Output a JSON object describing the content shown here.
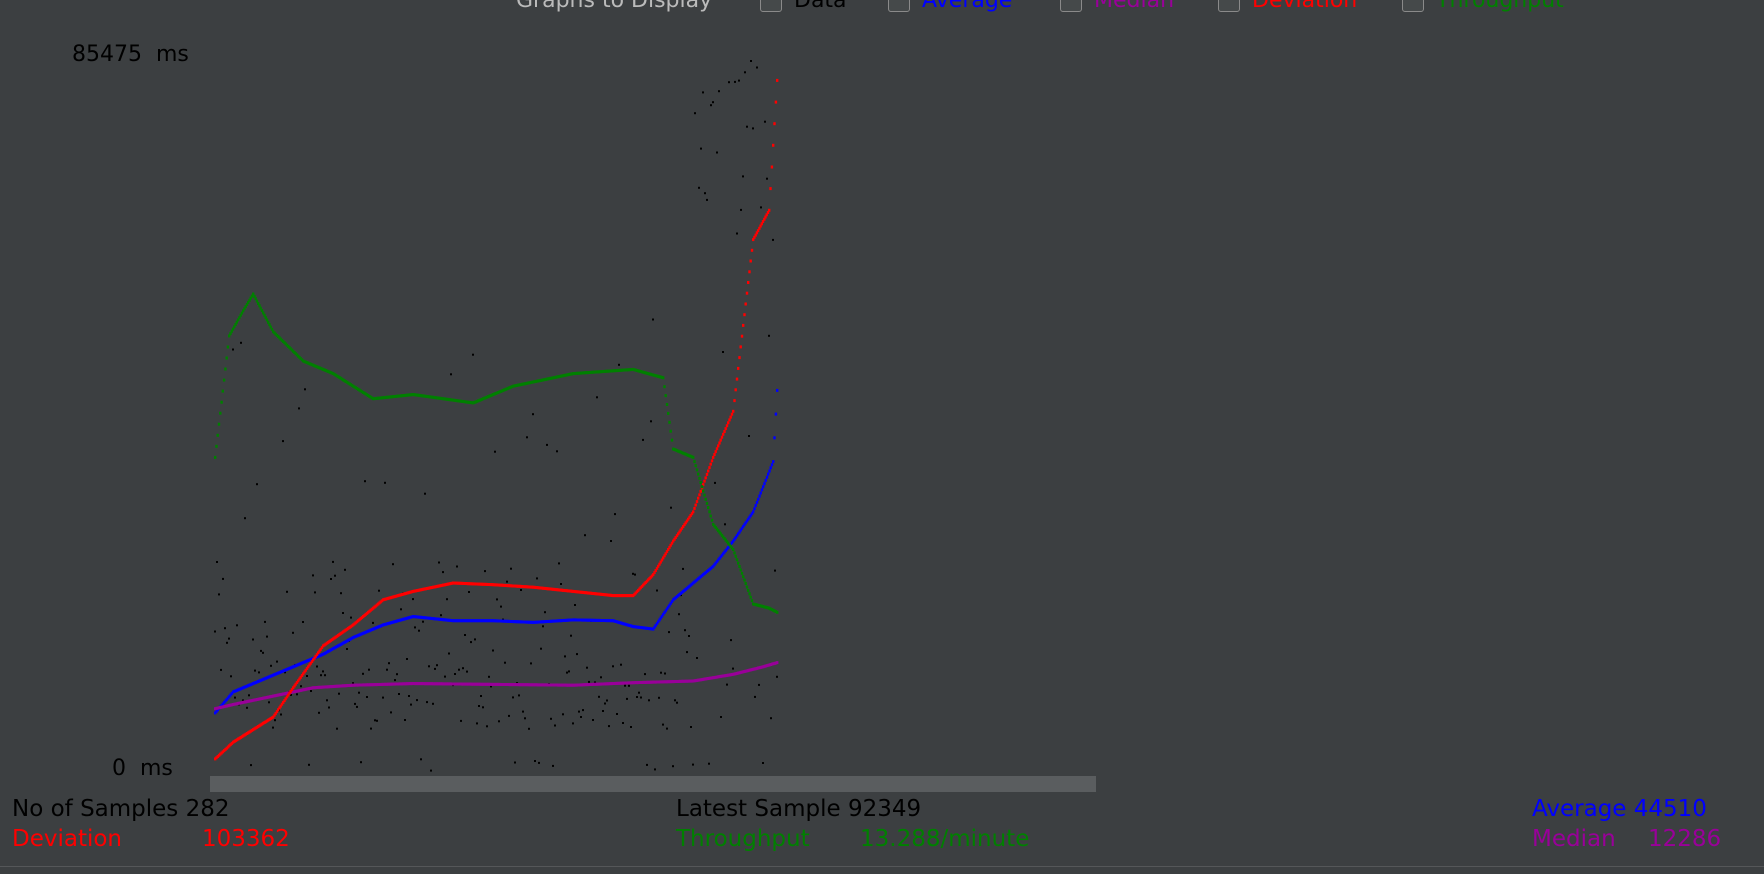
{
  "toolbar": {
    "title": "Graphs to Display",
    "items": [
      {
        "label": "Data",
        "color": "#000000"
      },
      {
        "label": "Average",
        "color": "#0000ff"
      },
      {
        "label": "Median",
        "color": "#990099"
      },
      {
        "label": "Deviation",
        "color": "#ff0000"
      },
      {
        "label": "Throughput",
        "color": "#008000"
      }
    ]
  },
  "axis": {
    "max_label": "85475",
    "min_label": "0",
    "unit": "ms"
  },
  "stats": {
    "samples_label": "No of Samples",
    "samples_value": "282",
    "latest_label": "Latest Sample",
    "latest_value": "92349",
    "average_label": "Average",
    "average_value": "44510",
    "deviation_label": "Deviation",
    "deviation_value": "103362",
    "throughput_label": "Throughput",
    "throughput_value": "13.288/minute",
    "median_label": "Median",
    "median_value": "12286"
  },
  "colors": {
    "background": "#3c3f41",
    "data": "#000000",
    "average": "#0000ff",
    "median": "#990099",
    "deviation": "#ff0000",
    "throughput": "#008000"
  },
  "chart_data": {
    "type": "scatter",
    "title": "",
    "xlabel": "",
    "ylabel": "",
    "ylim": [
      0,
      85475
    ],
    "x": "sample index",
    "xlim": [
      1,
      282
    ],
    "series": [
      {
        "name": "Average",
        "values": [
          [
            1,
            7000
          ],
          [
            10,
            9500
          ],
          [
            20,
            10500
          ],
          [
            30,
            11500
          ],
          [
            40,
            12500
          ],
          [
            55,
            14000
          ],
          [
            70,
            16000
          ],
          [
            85,
            17500
          ],
          [
            100,
            18500
          ],
          [
            120,
            18000
          ],
          [
            140,
            18000
          ],
          [
            160,
            17800
          ],
          [
            180,
            18100
          ],
          [
            200,
            18000
          ],
          [
            210,
            17300
          ],
          [
            220,
            17000
          ],
          [
            230,
            20500
          ],
          [
            240,
            22500
          ],
          [
            250,
            24500
          ],
          [
            260,
            27500
          ],
          [
            270,
            31000
          ],
          [
            280,
            37000
          ],
          [
            282,
            45500
          ]
        ]
      },
      {
        "name": "Median",
        "values": [
          [
            1,
            7500
          ],
          [
            10,
            8000
          ],
          [
            30,
            9000
          ],
          [
            50,
            10000
          ],
          [
            70,
            10300
          ],
          [
            100,
            10500
          ],
          [
            140,
            10400
          ],
          [
            180,
            10300
          ],
          [
            210,
            10600
          ],
          [
            240,
            10800
          ],
          [
            260,
            11600
          ],
          [
            275,
            12500
          ],
          [
            282,
            13000
          ]
        ]
      },
      {
        "name": "Deviation",
        "values": [
          [
            1,
            1500
          ],
          [
            10,
            3500
          ],
          [
            20,
            5000
          ],
          [
            30,
            6500
          ],
          [
            40,
            10000
          ],
          [
            55,
            15000
          ],
          [
            70,
            17500
          ],
          [
            85,
            20500
          ],
          [
            100,
            21500
          ],
          [
            120,
            22500
          ],
          [
            140,
            22300
          ],
          [
            160,
            22000
          ],
          [
            180,
            21500
          ],
          [
            200,
            21000
          ],
          [
            210,
            21000
          ],
          [
            220,
            23500
          ],
          [
            230,
            27500
          ],
          [
            240,
            31000
          ],
          [
            250,
            37500
          ],
          [
            260,
            43000
          ],
          [
            270,
            63500
          ],
          [
            278,
            67000
          ],
          [
            282,
            82500
          ]
        ]
      },
      {
        "name": "Throughput",
        "values": [
          [
            1,
            37500
          ],
          [
            8,
            52000
          ],
          [
            15,
            55000
          ],
          [
            20,
            57000
          ],
          [
            30,
            52500
          ],
          [
            45,
            49000
          ],
          [
            60,
            47500
          ],
          [
            80,
            44500
          ],
          [
            100,
            45000
          ],
          [
            130,
            44000
          ],
          [
            150,
            46000
          ],
          [
            180,
            47500
          ],
          [
            210,
            48000
          ],
          [
            225,
            47000
          ],
          [
            230,
            38500
          ],
          [
            240,
            37500
          ],
          [
            250,
            29500
          ],
          [
            260,
            26500
          ],
          [
            270,
            20000
          ],
          [
            278,
            19500
          ],
          [
            282,
            19000
          ]
        ]
      }
    ]
  }
}
